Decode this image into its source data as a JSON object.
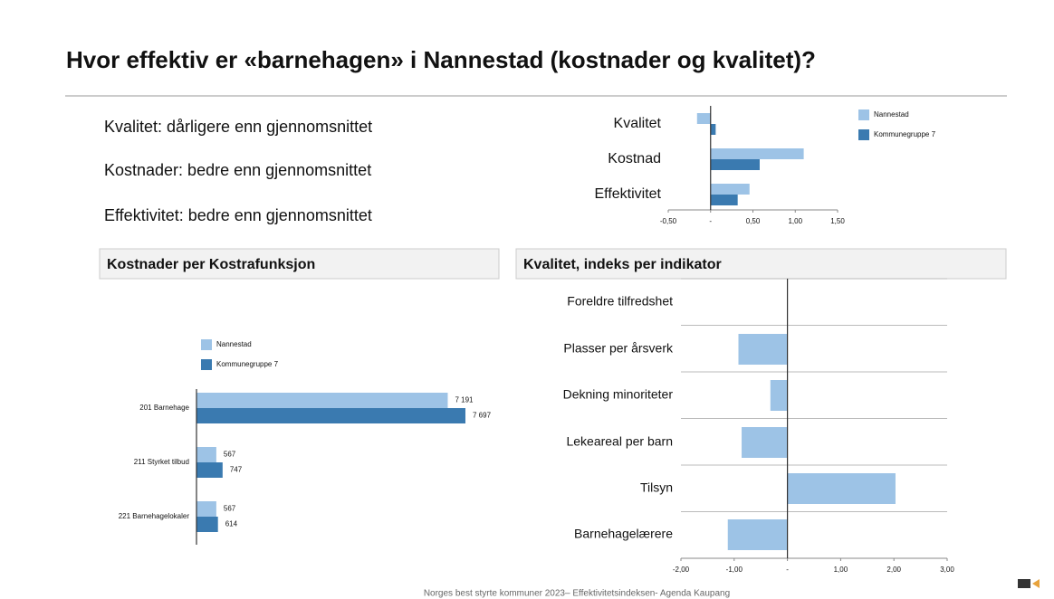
{
  "title": "Hvor effektiv er «barnehagen» i Nannestad (kostnader og kvalitet)?",
  "statements": [
    "Kvalitet: dårligere enn gjennomsnittet",
    "Kostnader: bedre enn gjennomsnittet",
    "Effektivitet: bedre enn gjennomsnittet"
  ],
  "footer": "Norges best styrte kommuner 2023– Effektivitetsindeksen- Agenda Kaupang",
  "chart_data": [
    {
      "type": "hbar",
      "categories": [
        "Kvalitet",
        "Kostnad",
        "Effektivitet"
      ],
      "series": [
        {
          "name": "Nannestad",
          "color": "#9dc3e6",
          "values": [
            -0.16,
            1.1,
            0.46
          ]
        },
        {
          "name": "Kommunegruppe 7",
          "color": "#3a7ab0",
          "values": [
            0.06,
            0.58,
            0.32
          ]
        }
      ],
      "xlim": [
        -0.5,
        1.5
      ],
      "xticks": [
        {
          "value": -0.5,
          "label": "-0,50"
        },
        {
          "value": 0,
          "label": "-"
        },
        {
          "value": 0.5,
          "label": "0,50"
        },
        {
          "value": 1,
          "label": "1,00"
        },
        {
          "value": 1.5,
          "label": "1,50"
        }
      ]
    },
    {
      "type": "hbar",
      "title": "Kostnader per Kostrafunksjon",
      "categories": [
        "201 Barnehage",
        "211 Styrket tilbud",
        "221 Barnehagelokaler"
      ],
      "series": [
        {
          "name": "Nannestad",
          "color": "#9dc3e6",
          "values": [
            7191,
            567,
            567
          ],
          "value_labels": [
            "7 191",
            "567",
            "567"
          ]
        },
        {
          "name": "Kommunegruppe 7",
          "color": "#3a7ab0",
          "values": [
            7697,
            747,
            614
          ],
          "value_labels": [
            "7 697",
            "747",
            "614"
          ]
        }
      ]
    },
    {
      "type": "hbar",
      "title": "Kvalitet, indeks per indikator",
      "categories": [
        "Foreldre tilfredshet",
        "Plasser per årsverk",
        "Dekning minoriteter",
        "Lekeareal per barn",
        "Tilsyn",
        "Barnehagelærere"
      ],
      "series": [
        {
          "name": "Nannestad",
          "color": "#9dc3e6",
          "values": [
            null,
            -0.92,
            -0.32,
            -0.86,
            2.03,
            -1.12
          ]
        }
      ],
      "xlim": [
        -2,
        3
      ],
      "xticks": [
        {
          "value": -2,
          "label": "-2,00"
        },
        {
          "value": -1,
          "label": "-1,00"
        },
        {
          "value": 0,
          "label": "-"
        },
        {
          "value": 1,
          "label": "1,00"
        },
        {
          "value": 2,
          "label": "2,00"
        },
        {
          "value": 3,
          "label": "3,00"
        }
      ]
    }
  ]
}
